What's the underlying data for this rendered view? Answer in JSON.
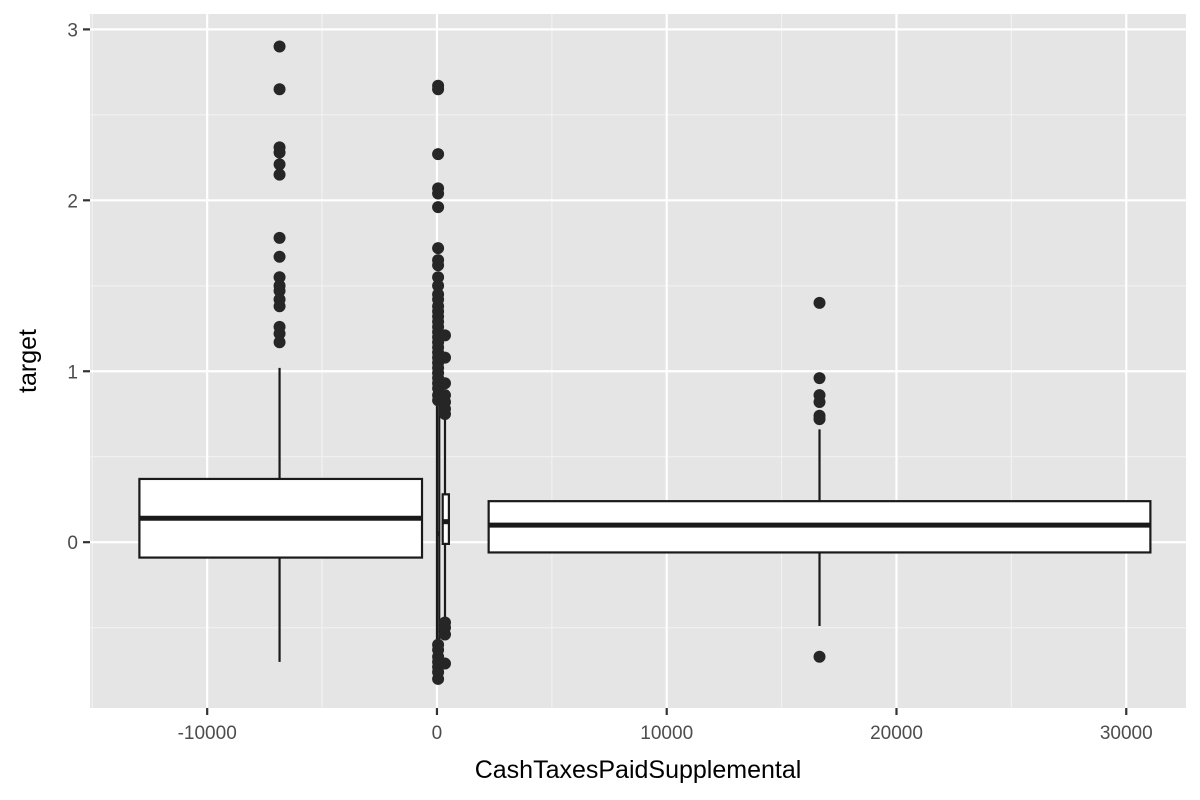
{
  "chart_data": {
    "type": "box",
    "orientation": "vertical",
    "xlabel": "CashTaxesPaidSupplemental",
    "ylabel": "target",
    "xlim": [
      -15100,
      32600
    ],
    "ylim": [
      -0.97,
      3.09
    ],
    "x_ticks": [
      -10000,
      0,
      10000,
      20000,
      30000
    ],
    "x_tick_labels": [
      "-10000",
      "0",
      "10000",
      "20000",
      "30000"
    ],
    "y_ticks": [
      0,
      1,
      2,
      3
    ],
    "y_tick_labels": [
      "0",
      "1",
      "2",
      "3"
    ],
    "grid": true,
    "boxes": [
      {
        "x_center": -6850,
        "x_left": -12950,
        "x_right": -650,
        "q1": -0.09,
        "median": 0.14,
        "q3": 0.37,
        "whisker_low": -0.7,
        "whisker_high": 1.02,
        "outliers": [
          2.9,
          2.65,
          2.31,
          2.28,
          2.21,
          2.15,
          1.78,
          1.67,
          1.55,
          1.5,
          1.47,
          1.42,
          1.38,
          1.26,
          1.22,
          1.17
        ]
      },
      {
        "x_center": 50,
        "x_left": 0,
        "x_right": 100,
        "q1": -0.72,
        "median": 0.05,
        "q3": 0.8,
        "whisker_low": -0.72,
        "whisker_high": 0.8,
        "outliers": [
          2.67,
          2.65,
          2.27,
          2.07,
          2.04,
          1.96,
          1.72,
          1.65,
          1.62,
          1.55,
          1.5,
          1.45,
          1.42,
          1.38,
          1.35,
          1.32,
          1.29,
          1.26,
          1.23,
          1.2,
          1.17,
          1.14,
          1.11,
          1.08,
          1.05,
          1.02,
          0.99,
          0.96,
          0.93,
          0.9,
          0.86,
          0.83,
          -0.8,
          -0.76,
          -0.73,
          -0.7,
          -0.67,
          -0.63,
          -0.6
        ]
      },
      {
        "x_center": 350,
        "x_left": 250,
        "x_right": 520,
        "q1": -0.01,
        "median": 0.12,
        "q3": 0.28,
        "whisker_low": -0.44,
        "whisker_high": 0.72,
        "outliers": [
          1.21,
          1.08,
          0.93,
          0.86,
          0.82,
          0.78,
          0.75,
          -0.47,
          -0.5,
          -0.54,
          -0.71
        ]
      },
      {
        "x_center": 16650,
        "x_left": 2250,
        "x_right": 31050,
        "q1": -0.06,
        "median": 0.1,
        "q3": 0.24,
        "whisker_low": -0.49,
        "whisker_high": 0.66,
        "outliers": [
          1.4,
          0.96,
          0.86,
          0.82,
          0.74,
          0.72,
          -0.67
        ]
      }
    ]
  }
}
